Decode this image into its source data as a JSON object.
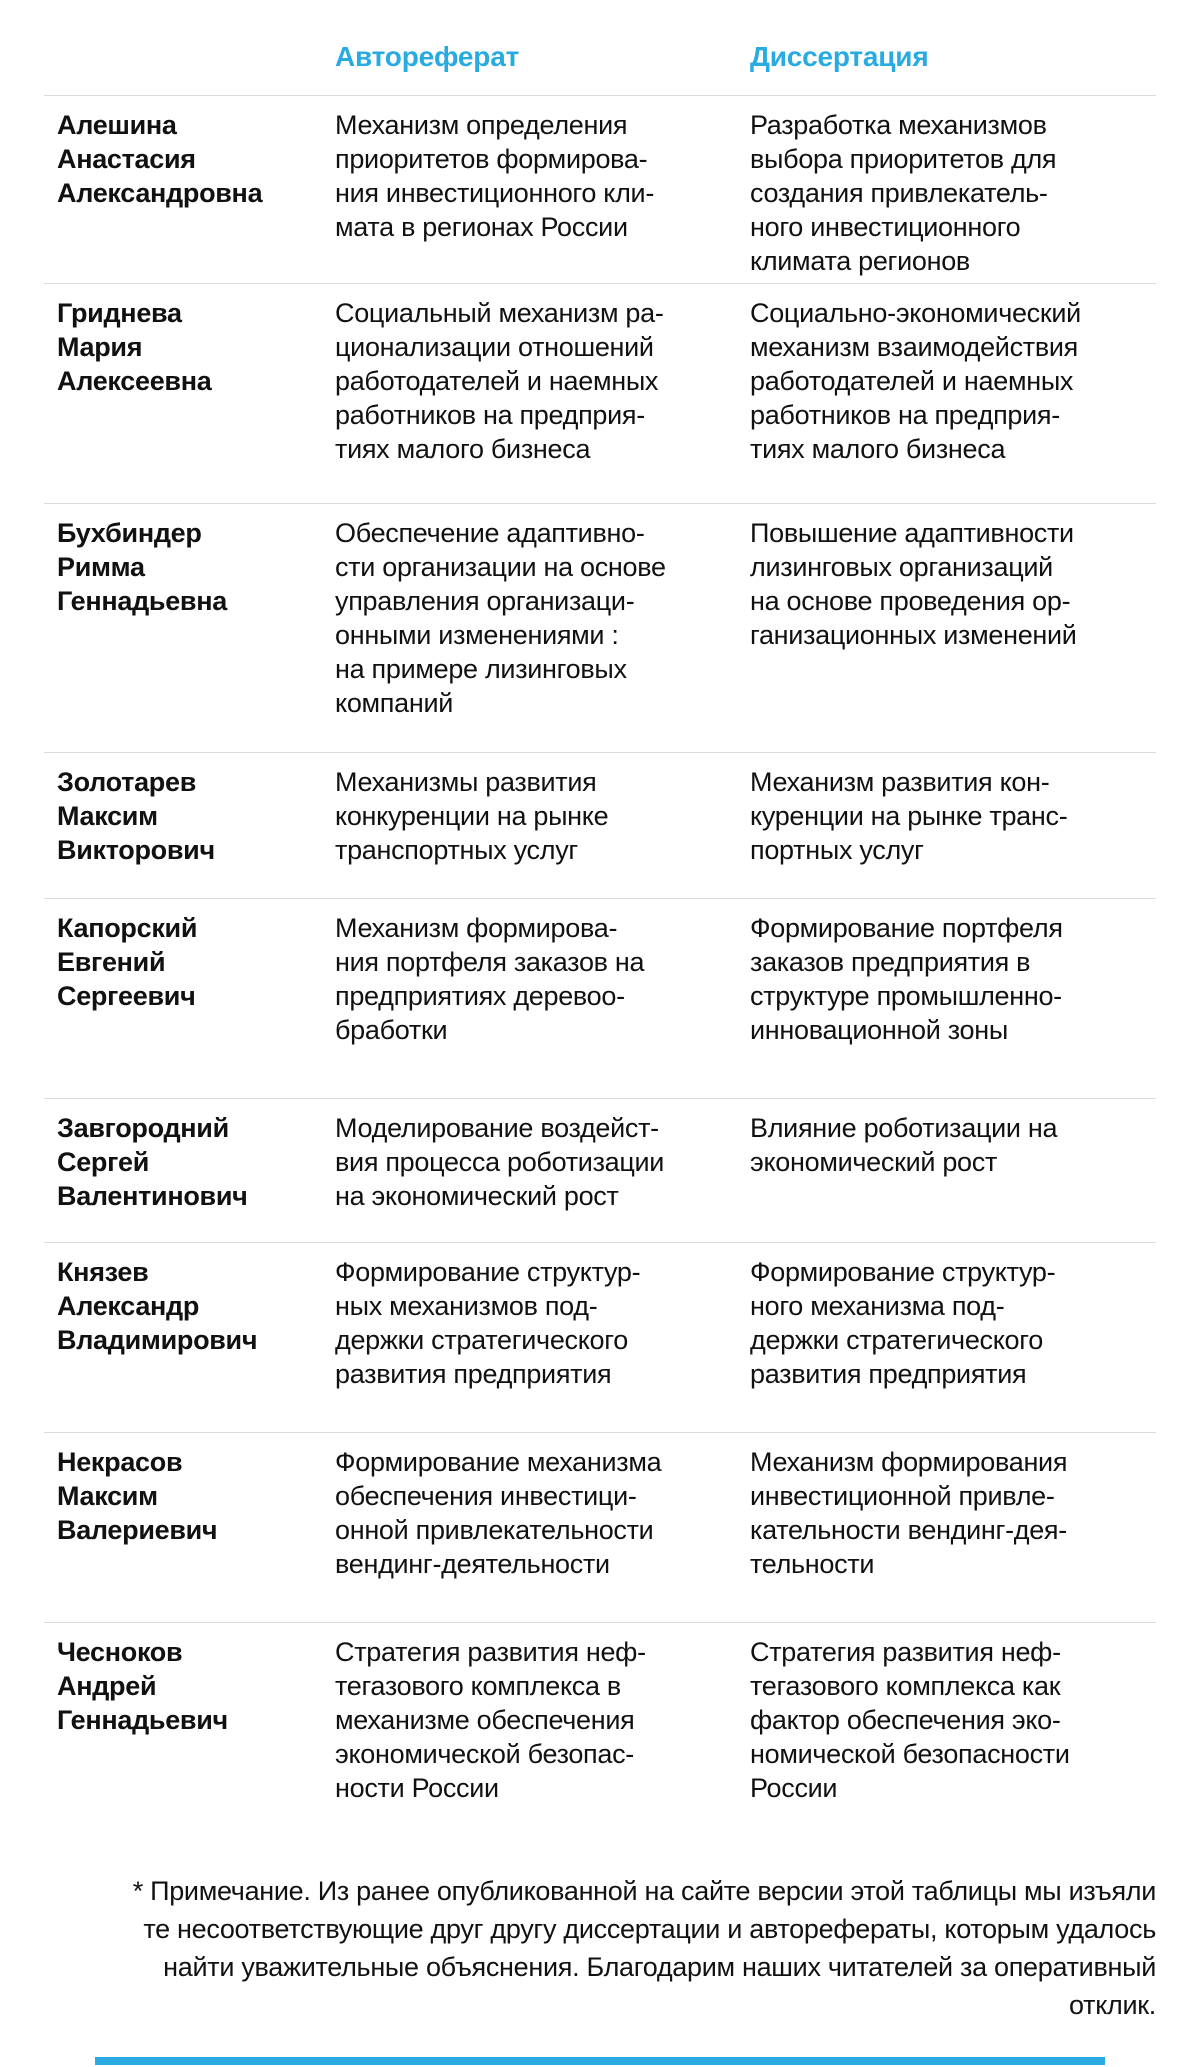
{
  "colors": {
    "accent_blue": "#29abe2",
    "divider_gray": "#dcdcdc",
    "text_black": "#111111"
  },
  "table": {
    "headers": {
      "abstract": "Автореферат",
      "dissertation": "Диссертация"
    },
    "rows": [
      {
        "name": "Алешина\nАнастасия\nАлександровна",
        "abstract": "Механизм определения\nприоритетов формирова-\nния инвестиционного кли-\nмата в регионах России",
        "dissertation": "Разработка механизмов\nвыбора приоритетов для\nсоздания привлекатель-\nного инвестиционного\nклимата регионов"
      },
      {
        "name": "Гриднева\nМария\nАлексеевна",
        "abstract": "Социальный механизм ра-\nционализации отношений\nработодателей и наемных\nработников на предприя-\nтиях малого бизнеса",
        "dissertation": "Социально-экономический\nмеханизм взаимодействия\nработодателей и наемных\nработников на предприя-\nтиях малого бизнеса"
      },
      {
        "name": "Бухбиндер\nРимма\nГеннадьевна",
        "abstract": "Обеспечение адаптивно-\nсти организации на основе\nуправления организаци-\nонными изменениями :\nна примере лизинговых\nкомпаний",
        "dissertation": "Повышение адаптивности\nлизинговых организаций\nна основе проведения ор-\nганизационных изменений"
      },
      {
        "name": "Золотарев\nМаксим\nВикторович",
        "abstract": "Механизмы развития\nконкуренции на рынке\nтранспортных услуг",
        "dissertation": "Механизм развития кон-\nкуренции на рынке транс-\nпортных услуг"
      },
      {
        "name": "Капорский\nЕвгений\nСергеевич",
        "abstract": "Механизм формирова-\nния портфеля заказов на\nпредприятиях деревоо-\nбработки",
        "dissertation": "Формирование портфеля\nзаказов предприятия в\nструктуре промышленно-\nинновационной зоны"
      },
      {
        "name": "Завгородний\nСергей\nВалентинович",
        "abstract": "Моделирование воздейст-\nвия процесса роботизации\nна экономический рост",
        "dissertation": "Влияние роботизации на\nэкономический рост"
      },
      {
        "name": "Князев\nАлександр\nВладимирович",
        "abstract": "Формирование структур-\nных механизмов под-\nдержки стратегического\nразвития предприятия",
        "dissertation": "Формирование структур-\nного механизма под-\nдержки стратегического\nразвития предприятия"
      },
      {
        "name": "Некрасов\nМаксим\nВалериевич",
        "abstract": "Формирование механизма\nобеспечения инвестици-\nонной привлекательности\nвендинг-деятельности",
        "dissertation": "Механизм формирования\nинвестиционной привле-\nкательности вендинг-дея-\nтельности"
      },
      {
        "name": "Чесноков\nАндрей\nГеннадьевич",
        "abstract": "Стратегия развития неф-\nтегазового комплекса в\nмеханизме обеспечения\nэкономической безопас-\nности России",
        "dissertation": "Стратегия развития неф-\nтегазового комплекса как\nфактор обеспечения эко-\nномической безопасности\nРоссии"
      }
    ]
  },
  "footnote": "* Примечание. Из ранее опубликованной на сайте версии этой таблицы мы изъяли\nте несоответствующие друг другу диссертации и авторефераты, которым удалось\nнайти уважительные объяснения. Благодарим наших читателей за оперативный\nотклик."
}
